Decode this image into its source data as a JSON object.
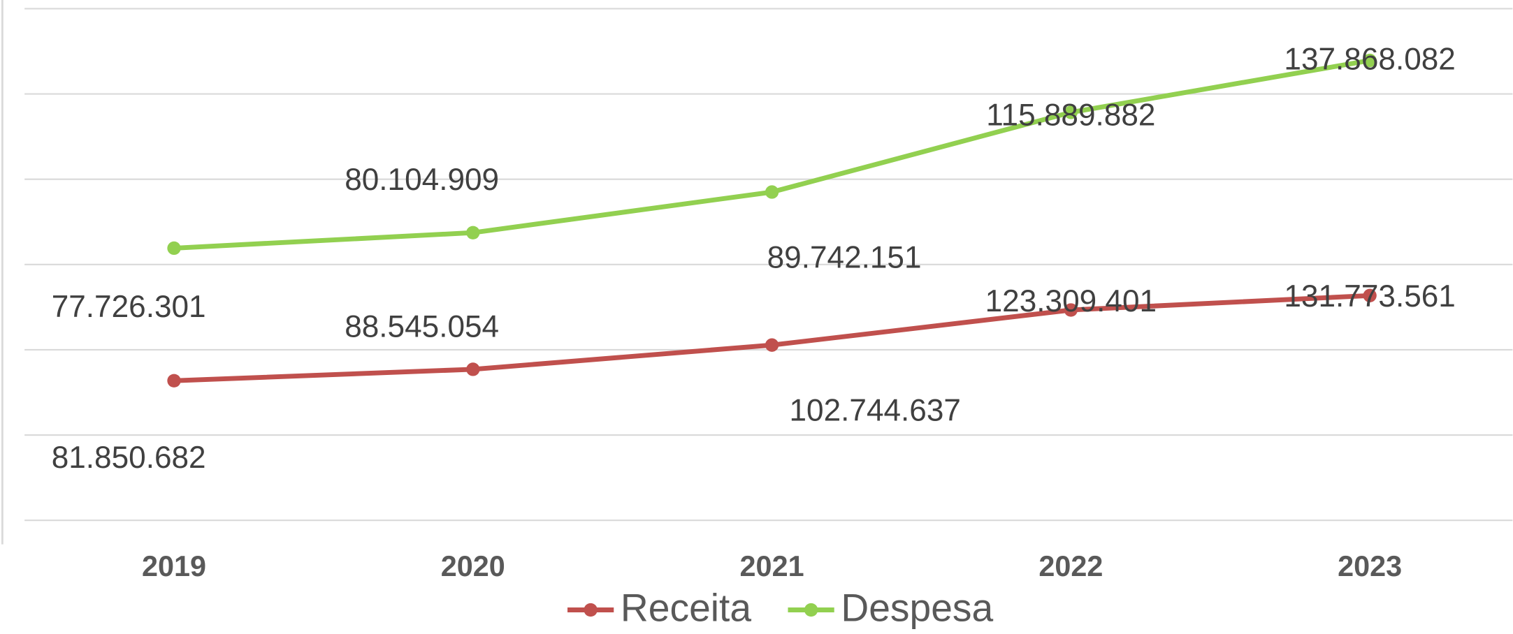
{
  "chart_data": {
    "type": "line",
    "stacked": true,
    "categories": [
      "2019",
      "2020",
      "2021",
      "2022",
      "2023"
    ],
    "series": [
      {
        "name": "Receita",
        "color": "#c0504d",
        "values": [
          81850682,
          88545054,
          102744637,
          123309401,
          131773561
        ],
        "value_labels": [
          "81.850.682",
          "88.545.054",
          "102.744.637",
          "123.309.401",
          "131.773.561"
        ]
      },
      {
        "name": "Despesa",
        "color": "#92d050",
        "values": [
          77726301,
          80104909,
          89742151,
          115889882,
          137868082
        ],
        "value_labels": [
          "77.726.301",
          "80.104.909",
          "89.742.151",
          "115.889.882",
          "137.868.082"
        ]
      }
    ],
    "ylim": [
      0,
      300000000
    ],
    "yticks": [
      0,
      50000000,
      100000000,
      150000000,
      200000000,
      250000000,
      300000000
    ],
    "grid": true,
    "legend": "bottom"
  }
}
